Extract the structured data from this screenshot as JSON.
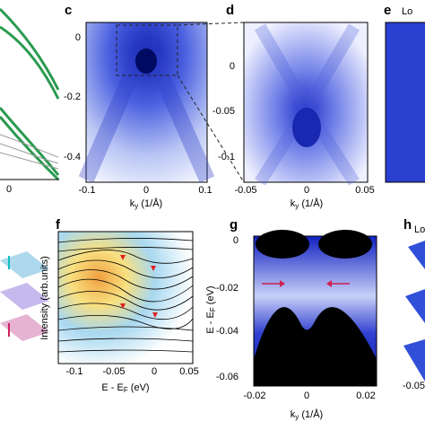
{
  "panels": {
    "c": {
      "label": "c",
      "y_ticks": [
        "0",
        "-0.2",
        "-0.4"
      ],
      "x_ticks": [
        "-0.1",
        "0",
        "0.1"
      ],
      "x_label": {
        "main": "k",
        "sub": "y",
        "unit": " (1/Å)"
      }
    },
    "d": {
      "label": "d",
      "y_ticks": [
        "0",
        "-0.05",
        "-0.1"
      ],
      "x_ticks": [
        "-0.05",
        "0",
        "0.05"
      ],
      "x_label": {
        "main": "k",
        "sub": "y",
        "unit": " (1/Å)"
      }
    },
    "e": {
      "label": "e",
      "note": "Lo"
    },
    "left": {
      "x_tick": "0"
    },
    "f": {
      "label": "f",
      "y_label": "Intensity (arb.units)",
      "x_ticks": [
        "-0.1",
        "-0.05",
        "0",
        "0.05"
      ],
      "x_label": {
        "main": "E - E",
        "sub": "F",
        "unit": " (eV)"
      }
    },
    "g": {
      "label": "g",
      "y_ticks": [
        "0",
        "-0.02",
        "-0.04",
        "-0.06"
      ],
      "x_ticks": [
        "-0.02",
        "0",
        "0.02"
      ],
      "y_label": {
        "main": "E - E",
        "sub": "F",
        "unit": " (eV)"
      },
      "x_label": {
        "main": "k",
        "sub": "y",
        "unit": " (1/Å)"
      }
    },
    "h": {
      "label": "h",
      "note": "Lo",
      "tick": "-0.05"
    }
  }
}
